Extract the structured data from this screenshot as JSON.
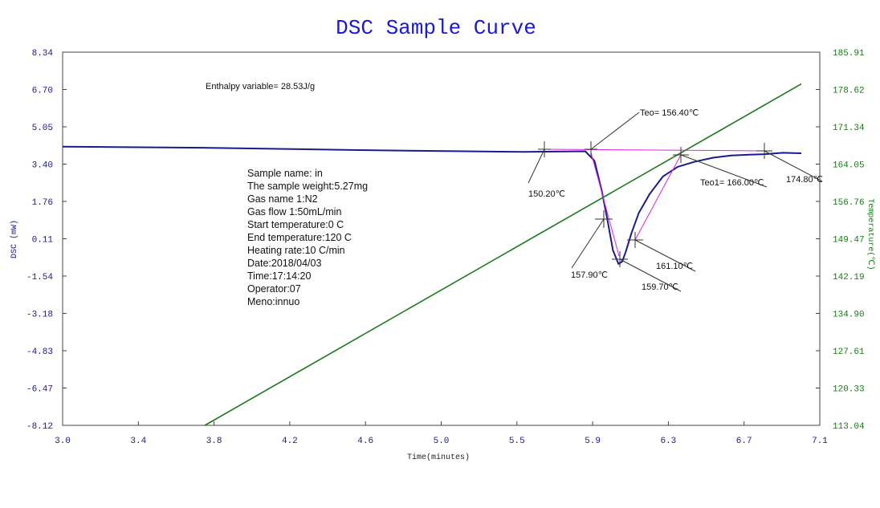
{
  "chart_data": {
    "type": "line",
    "title": "DSC Sample Curve",
    "xlabel": "Time(minutes)",
    "ylabel_left": "DSC (mW)",
    "ylabel_right": "Temperature(℃)",
    "xlim": [
      3.0,
      7.1
    ],
    "ylim_left": [
      -8.12,
      8.34
    ],
    "ylim_right": [
      113.04,
      185.91
    ],
    "x_ticks": [
      "3.0",
      "3.4",
      "3.8",
      "4.2",
      "4.6",
      "5.0",
      "5.5",
      "5.9",
      "6.3",
      "6.7",
      "7.1"
    ],
    "y_left_ticks": [
      "8.34",
      "6.70",
      "5.05",
      "3.40",
      "1.76",
      "0.11",
      "-1.54",
      "-3.18",
      "-4.83",
      "-6.47",
      "-8.12"
    ],
    "y_right_ticks": [
      "185.91",
      "178.62",
      "171.34",
      "164.05",
      "156.76",
      "149.47",
      "142.19",
      "134.90",
      "127.61",
      "120.33",
      "113.04"
    ],
    "grid": false,
    "series": [
      {
        "name": "DSC",
        "axis": "left",
        "color": "#1a1a8c",
        "x": [
          3.0,
          3.8,
          4.6,
          5.5,
          5.83,
          5.88,
          5.92,
          5.95,
          5.98,
          6.01,
          6.03,
          6.05,
          6.08,
          6.12,
          6.18,
          6.25,
          6.33,
          6.42,
          6.52,
          6.62,
          6.72,
          6.8,
          6.9,
          7.0
        ],
        "y": [
          4.17,
          4.12,
          4.02,
          3.94,
          3.97,
          3.55,
          2.2,
          0.95,
          -0.4,
          -1.0,
          -0.9,
          -0.45,
          0.35,
          1.25,
          2.1,
          2.85,
          3.28,
          3.5,
          3.68,
          3.78,
          3.82,
          3.84,
          3.9,
          3.88
        ]
      },
      {
        "name": "Temperature",
        "axis": "right",
        "color": "#1a7a1a",
        "x": [
          3.77,
          7.0
        ],
        "y": [
          113.04,
          179.7
        ]
      }
    ],
    "annotations": {
      "enthalpy": "Enthalpy variable= 28.53J/g",
      "teo": "Teo= 156.40℃",
      "teo1": "Teo1= 166.00℃",
      "t_150": "150.20℃",
      "t_157": "157.90℃",
      "t_159": "159.70℃",
      "t_161": "161.10℃",
      "t_174": "174.80℃"
    },
    "info_lines": [
      "Sample name: in",
      "The sample weight:5.27mg",
      "Gas name 1:N2",
      "Gas flow 1:50mL/min",
      "Start temperature:0 C",
      "End temperature:120 C",
      "Heating rate:10 C/min",
      "Date:2018/04/03",
      "Time:17:14:20",
      "Operator:07",
      "Meno:innuo"
    ]
  }
}
